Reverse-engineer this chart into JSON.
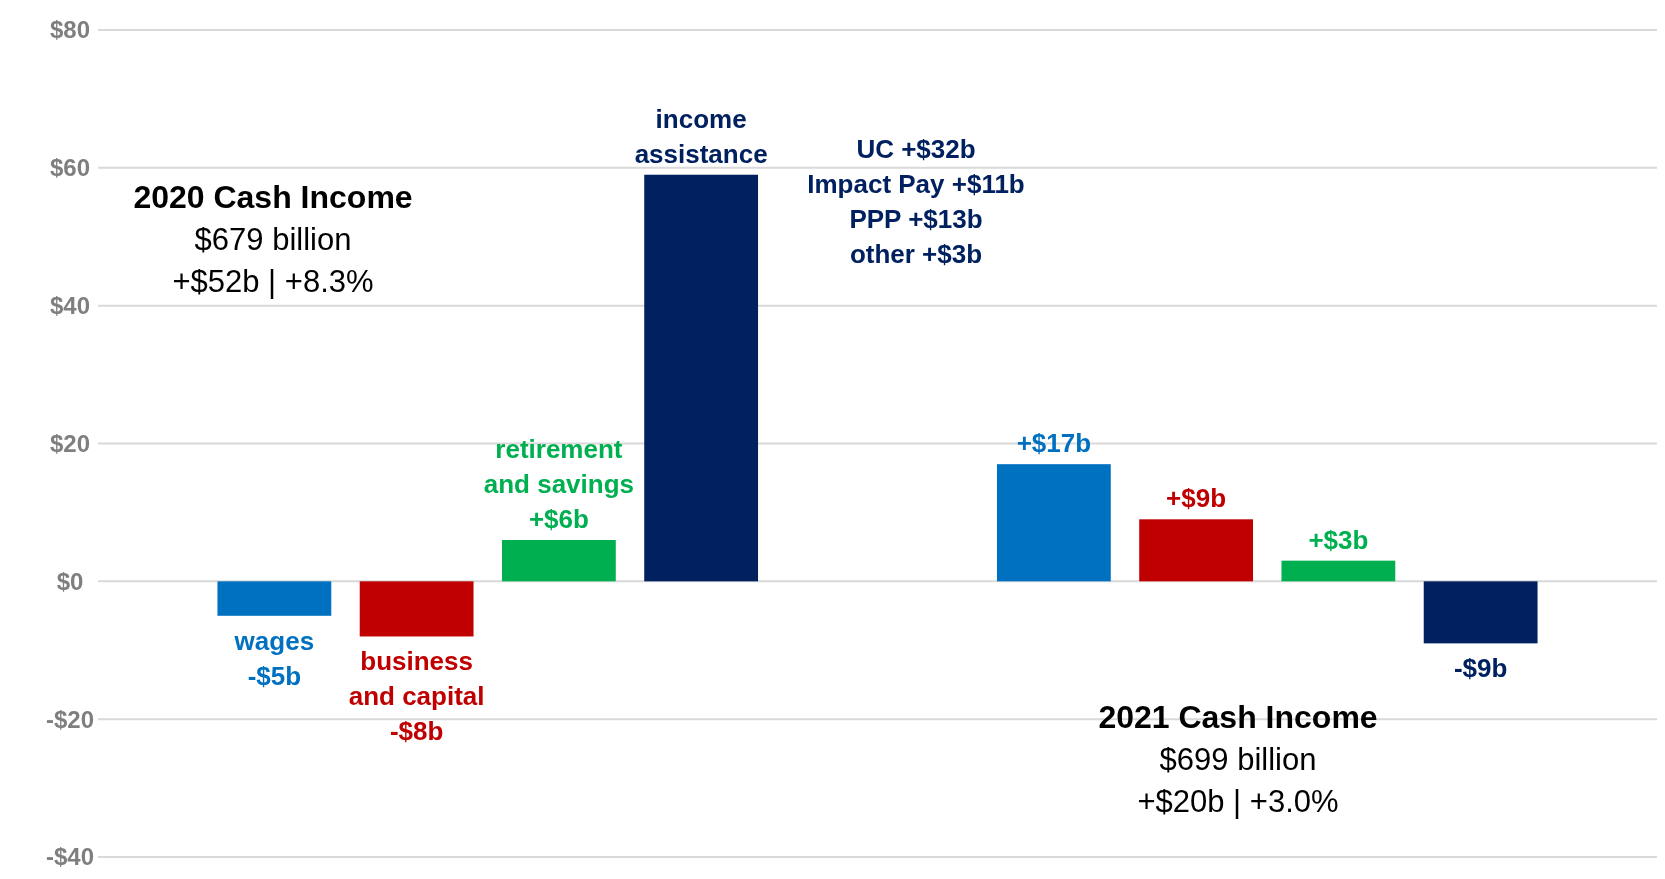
{
  "chart_data": {
    "type": "bar",
    "categories": [
      null,
      null
    ],
    "series": [
      {
        "name": "wages",
        "color": "#0070c0",
        "values": [
          -5,
          17
        ],
        "value_labels": [
          "-$5b",
          "+$17b"
        ]
      },
      {
        "name": "business and capital",
        "color": "#c00000",
        "values": [
          -8,
          9
        ],
        "value_labels": [
          "-$8b",
          "+$9b"
        ]
      },
      {
        "name": "retirement and savings",
        "color": "#00b050",
        "values": [
          6,
          3
        ],
        "value_labels": [
          "+$6b",
          "+$3b"
        ]
      },
      {
        "name": "income assistance",
        "color": "#002060",
        "values": [
          59,
          -9
        ],
        "value_labels": [
          null,
          "-$9b"
        ]
      }
    ],
    "ylim": [
      -40,
      80
    ],
    "yticks": [
      {
        "value": -40,
        "label": "-$40"
      },
      {
        "value": -20,
        "label": "-$20"
      },
      {
        "value": 0,
        "label": "$0"
      },
      {
        "value": 20,
        "label": "$20"
      },
      {
        "value": 40,
        "label": "$40"
      },
      {
        "value": 60,
        "label": "$60"
      },
      {
        "value": 80,
        "label": "$80"
      }
    ],
    "grid": "y",
    "tick_labels": "y",
    "annotations": [
      "2020 Cash Income",
      "$679 billion",
      "+$52b | +8.3%",
      "2021 Cash Income",
      "$699 billion",
      "+$20b | +3.0%",
      "UC +$32b",
      "Impact Pay +$11b",
      "PPP +$13b",
      "other +$3b"
    ]
  }
}
